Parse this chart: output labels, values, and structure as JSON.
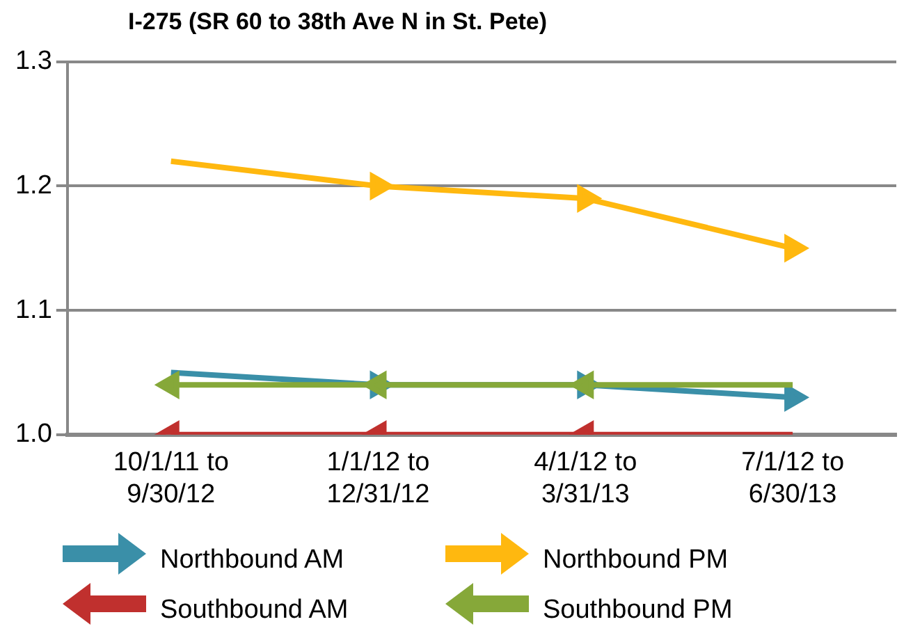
{
  "chart_data": {
    "type": "line",
    "title": "I-275 (SR 60 to 38th Ave N in St. Pete)",
    "categories": [
      "10/1/11 to\n9/30/12",
      "1/1/12 to\n12/31/12",
      "4/1/12 to\n3/31/13",
      "7/1/12 to\n6/30/13"
    ],
    "series": [
      {
        "name": "Northbound AM",
        "color": "#3a8fa8",
        "values": [
          1.05,
          1.04,
          1.04,
          1.03
        ]
      },
      {
        "name": "Northbound PM",
        "color": "#ffb80f",
        "values": [
          1.22,
          1.2,
          1.19,
          1.15
        ]
      },
      {
        "name": "Southbound AM",
        "color": "#c0302e",
        "values": [
          1.0,
          1.0,
          1.0,
          1.0
        ]
      },
      {
        "name": "Southbound PM",
        "color": "#86a839",
        "values": [
          1.04,
          1.04,
          1.04,
          1.04
        ]
      }
    ],
    "ylim": [
      1.0,
      1.3
    ],
    "yticks": [
      {
        "value": 1.0,
        "label": "1.0"
      },
      {
        "value": 1.1,
        "label": "1.1"
      },
      {
        "value": 1.2,
        "label": "1.2"
      },
      {
        "value": 1.3,
        "label": "1.3"
      }
    ],
    "grid": "y",
    "legend": "bottom",
    "marker": "triangle"
  }
}
